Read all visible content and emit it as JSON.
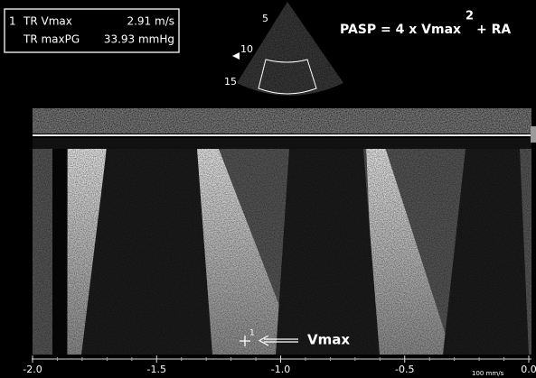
{
  "measurements": {
    "index": "1",
    "rows": [
      {
        "label": "TR Vmax",
        "value": "2.91 m/s"
      },
      {
        "label": "TR maxPG",
        "value": "33.93 mmHg"
      }
    ]
  },
  "formula": {
    "text": "PASP = 4 x Vmax",
    "exponent": "2",
    "suffix": "+ RA"
  },
  "sector": {
    "depth_labels": [
      "5",
      "10",
      "15"
    ]
  },
  "cursor_label": "1",
  "annotation": "Vmax",
  "axis": {
    "ticks": [
      "-2.0",
      "-1.5",
      "-1.0",
      "-0.5",
      "0.0"
    ],
    "speed": "100 mm/s"
  }
}
